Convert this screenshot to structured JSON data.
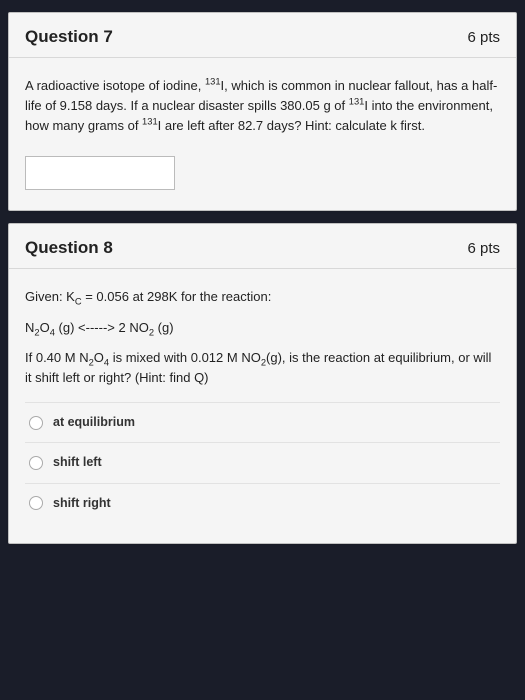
{
  "colors": {
    "page_bg": "#1a1d29",
    "card_bg": "#f5f5f5",
    "border": "#c0c0c0",
    "divider": "#d8d8d8",
    "text": "#222222",
    "option_border": "#e2e2e2",
    "radio_border": "#aaaaaa",
    "input_bg": "#ffffff"
  },
  "typography": {
    "title_fontsize": 17,
    "body_fontsize": 13,
    "option_fontsize": 12.5
  },
  "q7": {
    "title": "Question 7",
    "points": "6 pts",
    "prompt_html": "A radioactive isotope of iodine, <sup>131</sup>I, which is common in nuclear fallout, has a half-life of 9.158 days. If a nuclear disaster spills 380.05 g of <sup>131</sup>I into the environment, how many grams of <sup>131</sup>I are left after 82.7 days? Hint: calculate k first.",
    "answer_value": ""
  },
  "q8": {
    "title": "Question 8",
    "points": "6 pts",
    "given_html": "Given: K<sub>C</sub> = 0.056 at 298K for the reaction:",
    "equation_html": "N<sub>2</sub>O<sub>4</sub> (g) &lt;-----&gt; 2 NO<sub>2</sub> (g)",
    "prompt_html": "If 0.40 M N<sub>2</sub>O<sub>4</sub> is mixed with 0.012 M NO<sub>2</sub>(g), is the reaction at equilibrium, or will it shift left or right? (Hint: find Q)",
    "options": [
      {
        "label": "at equilibrium"
      },
      {
        "label": "shift left"
      },
      {
        "label": "shift right"
      }
    ]
  }
}
